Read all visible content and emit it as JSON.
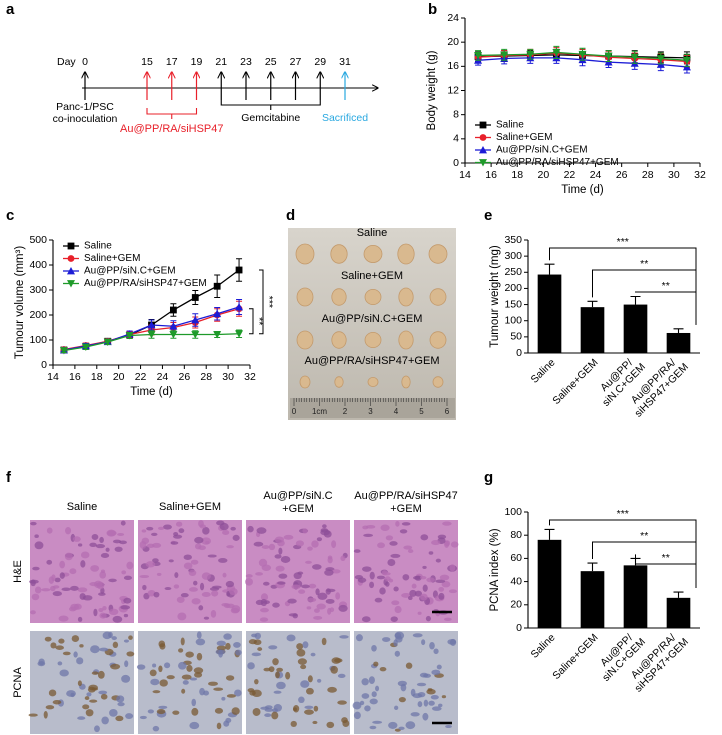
{
  "panel_labels": [
    "a",
    "b",
    "c",
    "d",
    "e",
    "f",
    "g"
  ],
  "timeline": {
    "day_label": "Day",
    "days": [
      0,
      15,
      17,
      19,
      21,
      23,
      25,
      27,
      29,
      31
    ],
    "start_note": [
      "Panc-1/PSC",
      "co-inoculation"
    ],
    "treatment": "Au@PP/RA/siHSP47",
    "chemo": "Gemcitabine",
    "end": "Sacrificed"
  },
  "chart_data": [
    {
      "type": "line",
      "xlabel": "Time (d)",
      "ylabel": "Body weight (g)",
      "x": [
        15,
        17,
        19,
        21,
        23,
        25,
        27,
        29,
        31
      ],
      "xlim": [
        14,
        32
      ],
      "xticks": [
        14,
        16,
        18,
        20,
        22,
        24,
        26,
        28,
        30,
        32
      ],
      "ylim": [
        0,
        24
      ],
      "yticks": [
        0,
        4,
        8,
        12,
        16,
        20,
        24
      ],
      "legend": "lower left",
      "series": [
        {
          "name": "Saline",
          "color": "#000000",
          "marker": "square",
          "values": [
            17.6,
            17.7,
            17.8,
            17.9,
            17.8,
            17.7,
            17.6,
            17.5,
            17.4
          ],
          "errors": [
            0.8,
            0.9,
            0.8,
            0.9,
            1.0,
            0.9,
            1.0,
            0.9,
            1.0
          ]
        },
        {
          "name": "Saline+GEM",
          "color": "#e8202a",
          "marker": "circle",
          "values": [
            17.5,
            17.8,
            17.9,
            18.2,
            17.9,
            17.5,
            17.3,
            17.1,
            16.8
          ],
          "errors": [
            0.8,
            0.8,
            0.9,
            0.9,
            0.9,
            1.0,
            0.9,
            1.0,
            1.0
          ]
        },
        {
          "name": "Au@PP/siN.C+GEM",
          "color": "#1c1cd6",
          "marker": "triangle-up",
          "values": [
            17.0,
            17.3,
            17.4,
            17.4,
            17.1,
            16.7,
            16.5,
            16.3,
            15.9
          ],
          "errors": [
            0.8,
            0.9,
            0.9,
            0.9,
            1.0,
            0.9,
            1.0,
            1.0,
            1.0
          ]
        },
        {
          "name": "Au@PP/RA/siHSP47+GEM",
          "color": "#1e9a2a",
          "marker": "triangle-down",
          "values": [
            17.8,
            17.9,
            18.0,
            18.3,
            18.0,
            17.7,
            17.5,
            17.3,
            17.0
          ],
          "errors": [
            0.8,
            0.9,
            0.8,
            1.0,
            1.0,
            0.9,
            1.0,
            0.9,
            1.0
          ]
        }
      ]
    },
    {
      "type": "line",
      "xlabel": "Time (d)",
      "ylabel": "Tumour volume (mm³)",
      "x": [
        15,
        17,
        19,
        21,
        23,
        25,
        27,
        29,
        31
      ],
      "xlim": [
        14,
        32
      ],
      "xticks": [
        14,
        16,
        18,
        20,
        22,
        24,
        26,
        28,
        30,
        32
      ],
      "ylim": [
        0,
        500
      ],
      "yticks": [
        0,
        100,
        200,
        300,
        400,
        500
      ],
      "legend": "upper left",
      "annotations": [
        "***",
        "**"
      ],
      "series": [
        {
          "name": "Saline",
          "color": "#000000",
          "marker": "square",
          "values": [
            60,
            75,
            95,
            120,
            160,
            220,
            270,
            315,
            380
          ],
          "errors": [
            8,
            10,
            10,
            12,
            22,
            25,
            28,
            45,
            45
          ]
        },
        {
          "name": "Saline+GEM",
          "color": "#e8202a",
          "marker": "circle",
          "values": [
            62,
            78,
            95,
            122,
            140,
            150,
            170,
            200,
            225
          ],
          "errors": [
            8,
            10,
            10,
            12,
            20,
            20,
            22,
            25,
            30
          ]
        },
        {
          "name": "Au@PP/siN.C+GEM",
          "color": "#1c1cd6",
          "marker": "triangle-up",
          "values": [
            60,
            76,
            93,
            124,
            160,
            155,
            180,
            205,
            232
          ],
          "errors": [
            8,
            10,
            10,
            12,
            20,
            22,
            25,
            25,
            30
          ]
        },
        {
          "name": "Au@PP/RA/siHSP47+GEM",
          "color": "#1e9a2a",
          "marker": "triangle-down",
          "values": [
            58,
            72,
            92,
            118,
            122,
            122,
            122,
            122,
            125
          ],
          "errors": [
            8,
            10,
            10,
            12,
            15,
            15,
            15,
            12,
            15
          ]
        }
      ]
    },
    {
      "type": "bar",
      "ylabel": "Tumour weight (mg)",
      "color": "#000000",
      "categories": [
        "Saline",
        "Saline+GEM",
        "Au@PP/siN.C+GEM",
        "Au@PP/RA/siHSP47+GEM"
      ],
      "values": [
        243,
        142,
        150,
        62
      ],
      "errors": [
        32,
        18,
        25,
        13
      ],
      "ylim": [
        0,
        350
      ],
      "yticks": [
        0,
        50,
        100,
        150,
        200,
        250,
        300,
        350
      ],
      "annotations": [
        "***",
        "**",
        "**"
      ]
    },
    {
      "type": "bar",
      "ylabel": "PCNA index (%)",
      "color": "#000000",
      "categories": [
        "Saline",
        "Saline+GEM",
        "Au@PP/siN.C+GEM",
        "Au@PP/RA/siHSP47+GEM"
      ],
      "values": [
        76,
        49,
        54,
        26
      ],
      "errors": [
        9,
        7,
        6,
        5
      ],
      "ylim": [
        0,
        100
      ],
      "yticks": [
        0,
        20,
        40,
        60,
        80,
        100
      ],
      "annotations": [
        "***",
        "**",
        "**"
      ]
    }
  ],
  "photo": {
    "groups": [
      "Saline",
      "Saline+GEM",
      "Au@PP/siN.C+GEM",
      "Au@PP/RA/siHSP47+GEM"
    ],
    "ruler": [
      "0",
      "1cm",
      "2",
      "3",
      "4",
      "5",
      "6"
    ]
  },
  "histology": {
    "columns": [
      [
        "Saline"
      ],
      [
        "Saline+GEM"
      ],
      [
        "Au@PP/siN.C",
        "+GEM"
      ],
      [
        "Au@PP/RA/siHSP47",
        "+GEM"
      ]
    ],
    "rows": [
      "H&E",
      "PCNA"
    ]
  }
}
